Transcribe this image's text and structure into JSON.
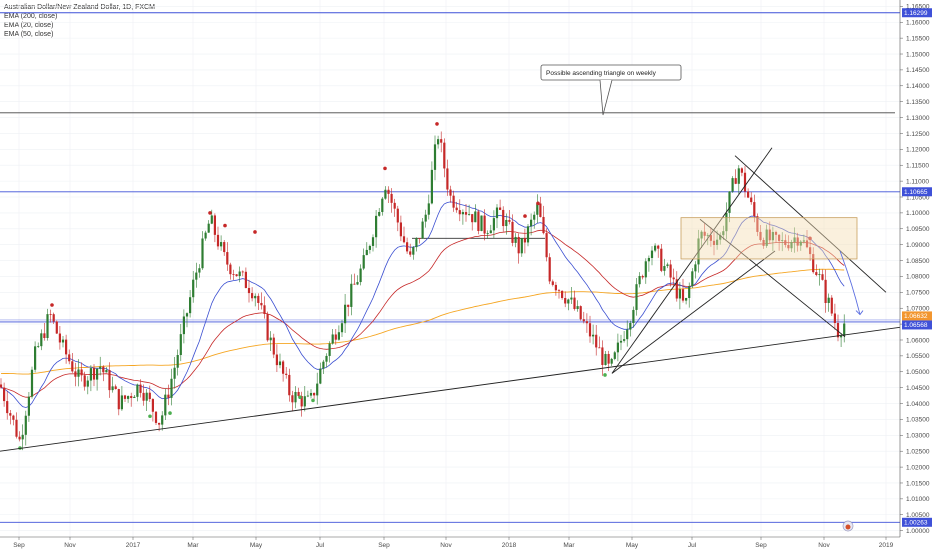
{
  "chart_data": {
    "type": "candlestick",
    "legend": {
      "title": "Australian Dollar/New Zealand Dollar, 1D, FXCM",
      "indicators": [
        "EMA (200, close)",
        "EMA (20, close)",
        "EMA (50, close)"
      ]
    },
    "y_ticks": [
      "1.16500",
      "1.16000",
      "1.15500",
      "1.15000",
      "1.14500",
      "1.14000",
      "1.13500",
      "1.13000",
      "1.12500",
      "1.12000",
      "1.11500",
      "1.11000",
      "1.10500",
      "1.10000",
      "1.09500",
      "1.09000",
      "1.08500",
      "1.08000",
      "1.07500",
      "1.07000",
      "1.06500",
      "1.06000",
      "1.05500",
      "1.05000",
      "1.04500",
      "1.04000",
      "1.03500",
      "1.03000",
      "1.02500",
      "1.02000",
      "1.01500",
      "1.01000",
      "1.00500",
      "1.00000"
    ],
    "x_ticks": [
      "Sep",
      "Nov",
      "2017",
      "Mar",
      "May",
      "Jul",
      "Sep",
      "Nov",
      "2018",
      "Mar",
      "May",
      "Jul",
      "Sep",
      "Nov",
      "2019"
    ],
    "price_tags": [
      {
        "label": "1.16299",
        "value": 1.16299,
        "color": "#3f51d8"
      },
      {
        "label": "1.10665",
        "value": 1.10665,
        "color": "#3f51d8"
      },
      {
        "label": "1.06632",
        "value": 1.06632,
        "color": "#f2962f"
      },
      {
        "label": "1.06568",
        "value": 1.06568,
        "color": "#3f51d8"
      },
      {
        "label": "1.00263",
        "value": 1.00263,
        "color": "#3f51d8"
      }
    ],
    "annotation": "Possible ascending triangle on weekly",
    "ylim": [
      0.998,
      1.167
    ],
    "colors": {
      "up": "#2e7d32",
      "down": "#c62828",
      "ema200": "#f5a623",
      "ema20": "#3b4fd1",
      "ema50": "#c62828",
      "hline": "#3f51d8",
      "trend": "#222222"
    }
  }
}
